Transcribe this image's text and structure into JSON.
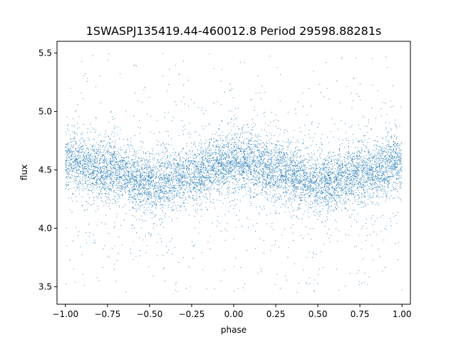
{
  "chart_data": {
    "type": "scatter",
    "title": "1SWASPJ135419.44-460012.8 Period 29598.88281s",
    "xlabel": "phase",
    "ylabel": "flux",
    "xlim": [
      -1.05,
      1.05
    ],
    "ylim": [
      3.35,
      5.6
    ],
    "x_ticks": [
      -1.0,
      -0.75,
      -0.5,
      -0.25,
      0.0,
      0.25,
      0.5,
      0.75,
      1.0
    ],
    "x_tick_labels": [
      "−1.00",
      "−0.75",
      "−0.50",
      "−0.25",
      "0.00",
      "0.25",
      "0.50",
      "0.75",
      "1.00"
    ],
    "y_ticks": [
      3.5,
      4.0,
      4.5,
      5.0,
      5.5
    ],
    "y_tick_labels": [
      "3.5",
      "4.0",
      "4.5",
      "5.0",
      "5.5"
    ],
    "grid": false,
    "legend": "none",
    "marker_color": "#1f77b4",
    "series": [
      {
        "phase_range": [
          -1.0,
          1.0
        ],
        "mean_flux_profile": {
          "phase": [
            -1.0,
            -0.75,
            -0.5,
            -0.25,
            0.0,
            0.25,
            0.5,
            0.75,
            1.0
          ],
          "flux": [
            4.58,
            4.5,
            4.38,
            4.46,
            4.57,
            4.5,
            4.38,
            4.46,
            4.57
          ]
        },
        "core_spread": 0.12,
        "outlier_range": [
          3.45,
          5.5
        ]
      }
    ]
  }
}
